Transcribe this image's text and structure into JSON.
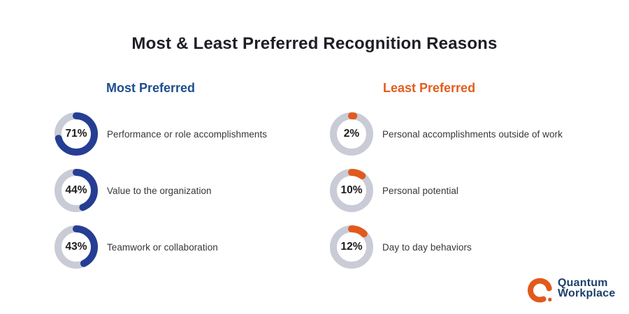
{
  "title": "Most & Least Preferred Recognition Reasons",
  "colors": {
    "navy_arc": "#253e93",
    "orange_arc": "#e2591c",
    "track": "#c9ccd6",
    "heading_blue": "#1d4e8d",
    "heading_orange": "#e55c1c",
    "title_color": "#1e1e26",
    "label_color": "#373737",
    "logo_navy": "#1d3f6b"
  },
  "chart_data": {
    "type": "donut-group",
    "groups": [
      {
        "heading": "Most Preferred",
        "accent": "#253e93",
        "items": [
          {
            "value": 71,
            "value_label": "71%",
            "label": "Performance or role accomplishments"
          },
          {
            "value": 44,
            "value_label": "44%",
            "label": "Value to the organization"
          },
          {
            "value": 43,
            "value_label": "43%",
            "label": "Teamwork or collaboration"
          }
        ]
      },
      {
        "heading": "Least Preferred",
        "accent": "#e2591c",
        "items": [
          {
            "value": 2,
            "value_label": "2%",
            "label": "Personal accomplishments outside of work"
          },
          {
            "value": 10,
            "value_label": "10%",
            "label": "Personal potential"
          },
          {
            "value": 12,
            "value_label": "12%",
            "label": "Day to day behaviors"
          }
        ]
      }
    ]
  },
  "logo": {
    "line1": "Quantum",
    "line2": "Workplace"
  }
}
